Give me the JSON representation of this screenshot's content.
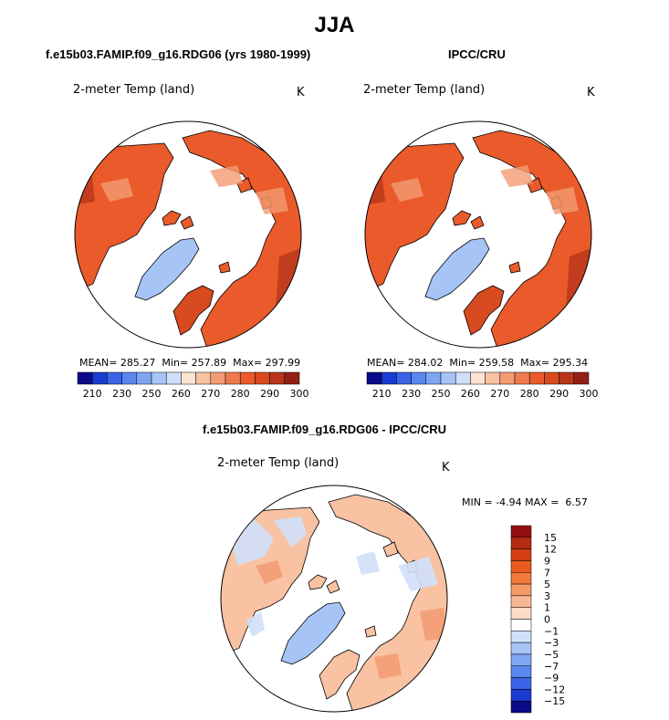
{
  "page": {
    "title": "JJA"
  },
  "chart_data": [
    {
      "type": "heatmap",
      "title": "f.e15b03.FAMIP.f09_g16.RDG06 (yrs 1980-1999)",
      "variable": "2-meter Temp (land)",
      "units": "K",
      "projection": "north-polar-stereographic",
      "stats": {
        "mean_label": "MEAN=",
        "mean": "285.27",
        "min_label": "Min=",
        "min": "257.89",
        "max_label": "Max=",
        "max": "297.99"
      },
      "colorbar": {
        "colors": [
          "#0b0b8a",
          "#1a3bd1",
          "#3a64e8",
          "#5a86ef",
          "#7ea6f3",
          "#a6c4f6",
          "#cfe0fa",
          "#fde4d2",
          "#f8c2a3",
          "#f39b73",
          "#ef7a4e",
          "#ea5a2a",
          "#d84a1f",
          "#b8361a",
          "#941f14"
        ],
        "tick_labels": [
          "210",
          "230",
          "250",
          "260",
          "270",
          "280",
          "290",
          "300"
        ]
      }
    },
    {
      "type": "heatmap",
      "title": "IPCC/CRU",
      "variable": "2-meter Temp (land)",
      "units": "K",
      "projection": "north-polar-stereographic",
      "stats": {
        "mean_label": "MEAN=",
        "mean": "284.02",
        "min_label": "Min=",
        "min": "259.58",
        "max_label": "Max=",
        "max": "295.34"
      },
      "colorbar": {
        "colors": [
          "#0b0b8a",
          "#1a3bd1",
          "#3a64e8",
          "#5a86ef",
          "#7ea6f3",
          "#a6c4f6",
          "#cfe0fa",
          "#fde4d2",
          "#f8c2a3",
          "#f39b73",
          "#ef7a4e",
          "#ea5a2a",
          "#d84a1f",
          "#b8361a",
          "#941f14"
        ],
        "tick_labels": [
          "210",
          "230",
          "250",
          "260",
          "270",
          "280",
          "290",
          "300"
        ]
      }
    },
    {
      "type": "heatmap",
      "title": "f.e15b03.FAMIP.f09_g16.RDG06 - IPCC/CRU",
      "variable": "2-meter Temp (land)",
      "units": "K",
      "projection": "north-polar-stereographic",
      "stats": {
        "min_label": "MIN =",
        "min": "-4.94",
        "max_label": "MAX =",
        "max": "6.57"
      },
      "colorbar": {
        "colors": [
          "#940f0f",
          "#b62a12",
          "#d43d14",
          "#ea5a1d",
          "#f27a3d",
          "#f59a68",
          "#f8b896",
          "#fcdac6",
          "#ffffff",
          "#cfe0fa",
          "#a6c4f6",
          "#7ea6f3",
          "#5a86ef",
          "#3a64e8",
          "#1a3bd1",
          "#0b0b8a"
        ],
        "tick_labels": [
          "15",
          "12",
          "9",
          "7",
          "5",
          "3",
          "1",
          "0",
          "−1",
          "−3",
          "−5",
          "−7",
          "−9",
          "−12",
          "−15"
        ]
      }
    }
  ],
  "colors": {
    "land_warm": "#ea5a2a",
    "land_dark": "#d84a1f",
    "ice": "#a6c4f6",
    "diff_pos": "#f8c2a3",
    "diff_neg": "#a6c4f6"
  }
}
